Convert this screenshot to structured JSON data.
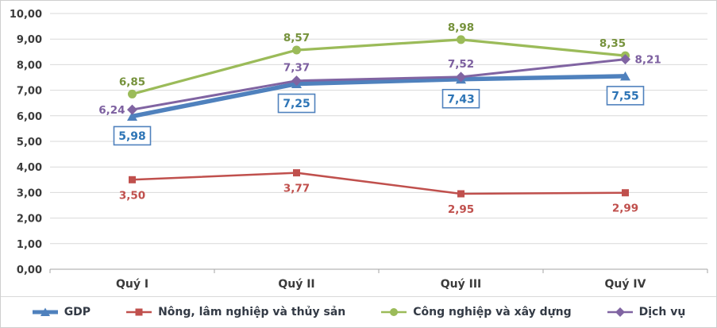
{
  "chart_data": {
    "type": "line",
    "title": "",
    "categories": [
      "Quý I",
      "Quý II",
      "Quý III",
      "Quý IV"
    ],
    "y_ticks": [
      "0,00",
      "1,00",
      "2,00",
      "3,00",
      "4,00",
      "5,00",
      "6,00",
      "7,00",
      "8,00",
      "9,00",
      "10,00"
    ],
    "ylim": [
      0,
      10
    ],
    "grid": true,
    "legend_position": "bottom",
    "series": [
      {
        "name": "GDP",
        "color": "#4f81bd",
        "label_color": "#2e75b6",
        "marker": "triangle",
        "values": [
          5.98,
          7.25,
          7.43,
          7.55
        ],
        "labels": [
          "5,98",
          "7,25",
          "7,43",
          "7,55"
        ],
        "label_style": "boxed-below"
      },
      {
        "name": "Nông, lâm nghiệp và thủy sản",
        "color": "#c0504d",
        "label_color": "#c0504d",
        "marker": "square",
        "values": [
          3.5,
          3.77,
          2.95,
          2.99
        ],
        "labels": [
          "3,50",
          "3,77",
          "2,95",
          "2,99"
        ],
        "label_style": "below"
      },
      {
        "name": "Công nghiệp và xây dựng",
        "color": "#9bbb59",
        "label_color": "#76923c",
        "marker": "circle",
        "values": [
          6.85,
          8.57,
          8.98,
          8.35
        ],
        "labels": [
          "6,85",
          "8,57",
          "8,98",
          "8,35"
        ],
        "label_style": "above"
      },
      {
        "name": "Dịch vụ",
        "color": "#8064a2",
        "label_color": "#7d60a0",
        "marker": "diamond",
        "values": [
          6.24,
          7.37,
          7.52,
          8.21
        ],
        "labels": [
          "6,24",
          "7,37",
          "7,52",
          "8,21"
        ],
        "label_style": "mixed"
      }
    ]
  }
}
